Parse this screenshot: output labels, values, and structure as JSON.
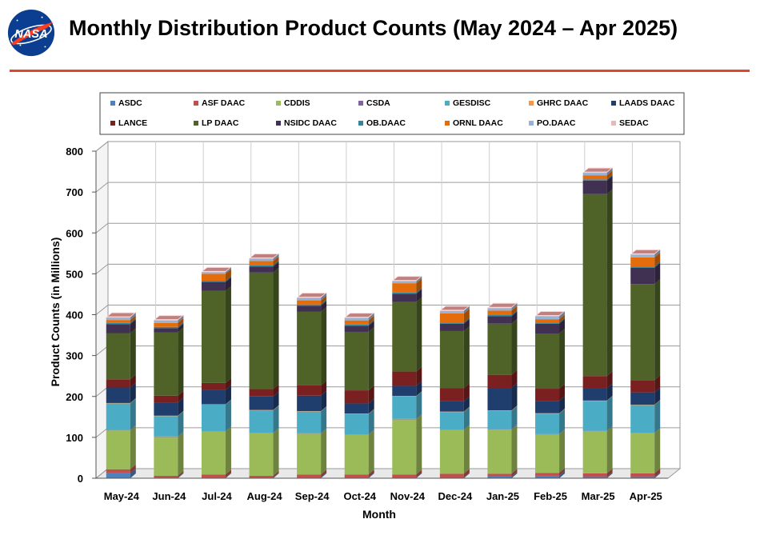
{
  "page": {
    "title": "Monthly Distribution Product Counts (May 2024 – Apr 2025)",
    "logo_text": "NASA"
  },
  "colors": {
    "title_rule": "#e0452e",
    "grid": "#9a9a9a"
  },
  "chart_data": {
    "type": "bar",
    "stacked": true,
    "three_d": true,
    "xlabel": "Month",
    "ylabel": "Product Counts (in Millions)",
    "ylim": [
      0,
      800
    ],
    "yticks": [
      0,
      100,
      200,
      300,
      400,
      500,
      600,
      700,
      800
    ],
    "grid": true,
    "legend_position": "top",
    "categories": [
      "May-24",
      "Jun-24",
      "Jul-24",
      "Aug-24",
      "Sep-24",
      "Oct-24",
      "Nov-24",
      "Dec-24",
      "Jan-25",
      "Feb-25",
      "Mar-25",
      "Apr-25"
    ],
    "series": [
      {
        "name": "ASDC",
        "color": "#4f81bd",
        "values": [
          12,
          2,
          2,
          2,
          2,
          2,
          2,
          2,
          4,
          6,
          3,
          3
        ]
      },
      {
        "name": "ASF DAAC",
        "color": "#c0504d",
        "values": [
          10,
          4,
          7,
          4,
          7,
          7,
          7,
          9,
          7,
          7,
          9,
          9
        ]
      },
      {
        "name": "CDDIS",
        "color": "#9bbb59",
        "values": [
          95,
          95,
          105,
          104,
          100,
          97,
          135,
          107,
          108,
          94,
          103,
          98
        ]
      },
      {
        "name": "CSDA",
        "color": "#8064a2",
        "values": [
          1,
          1,
          1,
          1,
          1,
          1,
          1,
          1,
          1,
          1,
          1,
          1
        ]
      },
      {
        "name": "GESDISC",
        "color": "#4bacc6",
        "values": [
          65,
          50,
          65,
          55,
          53,
          50,
          55,
          43,
          45,
          50,
          73,
          68
        ]
      },
      {
        "name": "GHRC DAAC",
        "color": "#f79646",
        "values": [
          1,
          1,
          1,
          1,
          1,
          1,
          1,
          1,
          1,
          1,
          1,
          1
        ]
      },
      {
        "name": "LAADS DAAC",
        "color": "#1f3e6e",
        "values": [
          38,
          32,
          35,
          33,
          38,
          25,
          25,
          25,
          55,
          30,
          30,
          30
        ]
      },
      {
        "name": "LANCE",
        "color": "#7b2020",
        "values": [
          20,
          17,
          17,
          18,
          25,
          32,
          35,
          32,
          32,
          30,
          30,
          30
        ]
      },
      {
        "name": "LP DAAC",
        "color": "#4f6228",
        "values": [
          113,
          155,
          225,
          285,
          180,
          143,
          170,
          140,
          125,
          135,
          445,
          235
        ]
      },
      {
        "name": "NSIDC DAAC",
        "color": "#403152",
        "values": [
          22,
          10,
          22,
          15,
          15,
          15,
          20,
          18,
          18,
          24,
          33,
          40
        ]
      },
      {
        "name": "OB.DAAC",
        "color": "#31859c",
        "values": [
          3,
          3,
          3,
          3,
          3,
          3,
          3,
          3,
          3,
          3,
          3,
          3
        ]
      },
      {
        "name": "ORNL DAAC",
        "color": "#e46c0a",
        "values": [
          7,
          10,
          17,
          10,
          10,
          10,
          23,
          22,
          11,
          8,
          10,
          22
        ]
      },
      {
        "name": "PO.DAAC",
        "color": "#95b3d7",
        "values": [
          6,
          6,
          4,
          6,
          6,
          6,
          5,
          6,
          6,
          7,
          6,
          7
        ]
      },
      {
        "name": "SEDAC",
        "color": "#e6b9b8",
        "values": [
          1,
          1,
          1,
          1,
          1,
          1,
          1,
          1,
          1,
          1,
          1,
          1
        ]
      }
    ]
  }
}
